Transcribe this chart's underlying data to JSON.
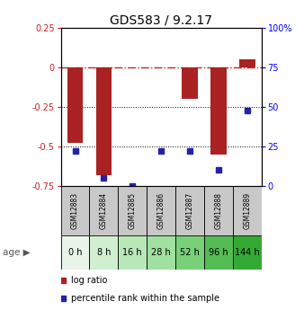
{
  "title": "GDS583 / 9.2.17",
  "samples": [
    "GSM12883",
    "GSM12884",
    "GSM12885",
    "GSM12886",
    "GSM12887",
    "GSM12888",
    "GSM12889"
  ],
  "ages": [
    "0 h",
    "8 h",
    "16 h",
    "28 h",
    "52 h",
    "96 h",
    "144 h"
  ],
  "log_ratios": [
    -0.48,
    -0.68,
    0.0,
    0.0,
    -0.2,
    -0.55,
    0.05
  ],
  "percentile_ranks": [
    22,
    5,
    0,
    22,
    22,
    10,
    48
  ],
  "ylim": [
    -0.75,
    0.25
  ],
  "right_ylim": [
    0,
    100
  ],
  "right_yticks": [
    0,
    25,
    50,
    75,
    100
  ],
  "right_yticklabels": [
    "0",
    "25",
    "50",
    "75",
    "100%"
  ],
  "left_yticks": [
    -0.75,
    -0.5,
    -0.25,
    0.0,
    0.25
  ],
  "left_yticklabels": [
    "-0.75",
    "-0.5",
    "-0.25",
    "0",
    "0.25"
  ],
  "hline_y": 0.0,
  "dotted_lines": [
    -0.25,
    -0.5
  ],
  "bar_color": "#aa2222",
  "dot_color": "#2222aa",
  "age_colors": [
    "#e8f5e8",
    "#d0efd0",
    "#b8e8b8",
    "#a0e0a0",
    "#78d078",
    "#55bb55",
    "#33aa33"
  ],
  "sample_bg": "#c8c8c8",
  "legend_items": [
    {
      "color": "#aa2222",
      "label": "log ratio"
    },
    {
      "color": "#2222aa",
      "label": "percentile rank within the sample"
    }
  ]
}
